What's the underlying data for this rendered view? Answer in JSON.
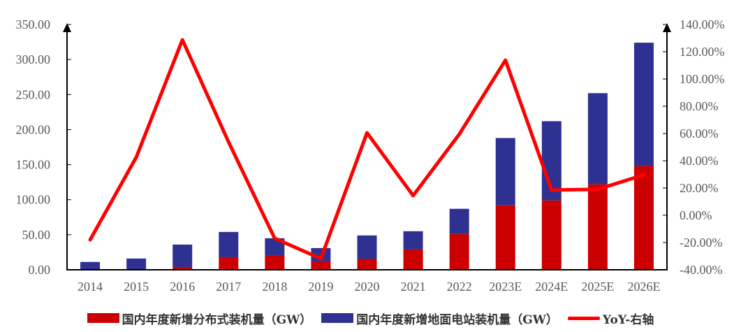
{
  "chart_data": {
    "type": "bar",
    "subtype": "stacked-bar-with-line",
    "title": "",
    "categories": [
      "2014",
      "2015",
      "2016",
      "2017",
      "2018",
      "2019",
      "2020",
      "2021",
      "2022",
      "2023E",
      "2024E",
      "2025E",
      "2026E"
    ],
    "series": [
      {
        "name": "国内年度新增分布式装机量（GW）",
        "type": "bar",
        "axis": "left",
        "color": "#cc0000",
        "values": [
          0.2,
          0.1,
          4,
          18,
          20,
          12,
          15.5,
          29,
          51,
          92,
          99,
          122,
          148
        ]
      },
      {
        "name": "国内年度新增地面电站装机量（GW）",
        "type": "bar",
        "axis": "left",
        "color": "#2e3192",
        "values": [
          11,
          16,
          32,
          36,
          25,
          19,
          33.5,
          26,
          36,
          96,
          113,
          130,
          176
        ]
      },
      {
        "name": "YoY-右轴",
        "type": "line",
        "axis": "right",
        "color": "#ff0000",
        "values": [
          -18,
          42.6,
          128.7,
          53.8,
          -17,
          -31.8,
          60.5,
          14.4,
          59.5,
          113.8,
          18.5,
          19,
          29.7
        ]
      }
    ],
    "left_axis": {
      "min": 0,
      "max": 350,
      "step": 50,
      "ticks": [
        "0.00",
        "50.00",
        "100.00",
        "150.00",
        "200.00",
        "250.00",
        "300.00",
        "350.00"
      ]
    },
    "right_axis": {
      "min": -40,
      "max": 140,
      "step": 20,
      "ticks": [
        "-40.00%",
        "-20.00%",
        "0.00%",
        "20.00%",
        "40.00%",
        "60.00%",
        "80.00%",
        "100.00%",
        "120.00%",
        "140.00%"
      ]
    },
    "xlabel": "",
    "ylabel": "",
    "grid": false,
    "legend_position": "bottom"
  },
  "legend": {
    "items": [
      {
        "label": "国内年度新增分布式装机量（GW）",
        "color": "#cc0000",
        "kind": "box"
      },
      {
        "label": "国内年度新增地面电站装机量（GW）",
        "color": "#2e3192",
        "kind": "box"
      },
      {
        "label": "YoY-右轴",
        "color": "#ff0000",
        "kind": "line"
      }
    ]
  }
}
